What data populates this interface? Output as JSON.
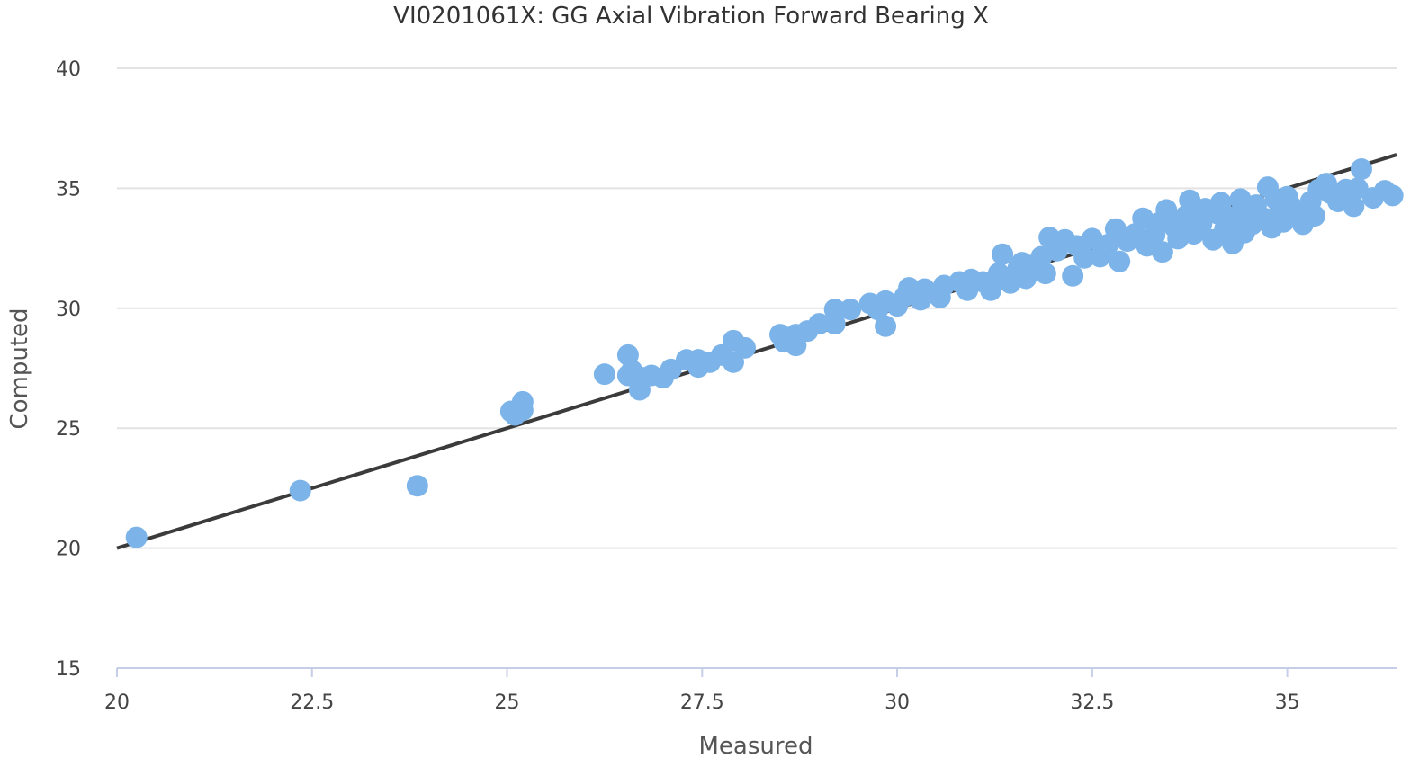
{
  "chart_data": {
    "type": "scatter",
    "title": "VI0201061X: GG Axial Vibration Forward Bearing X",
    "xlabel": "Measured",
    "ylabel": "Computed",
    "xlim": [
      20,
      36.4
    ],
    "ylim": [
      15,
      40
    ],
    "xticks": [
      20,
      22.5,
      25,
      27.5,
      30,
      32.5,
      35
    ],
    "yticks": [
      15,
      20,
      25,
      30,
      35,
      40
    ],
    "grid": true,
    "legend": "none",
    "colors": {
      "points": "#7cb4ea",
      "line": "#3b3b3b"
    },
    "series": [
      {
        "type": "scatter",
        "values": [
          [
            20.25,
            20.45
          ],
          [
            22.35,
            22.4
          ],
          [
            23.85,
            22.6
          ],
          [
            25.05,
            25.7
          ],
          [
            25.1,
            25.55
          ],
          [
            25.2,
            25.75
          ],
          [
            25.2,
            26.1
          ],
          [
            26.25,
            27.25
          ],
          [
            26.55,
            28.05
          ],
          [
            26.55,
            27.2
          ],
          [
            26.6,
            27.4
          ],
          [
            26.7,
            26.6
          ],
          [
            26.75,
            27.1
          ],
          [
            26.85,
            27.2
          ],
          [
            27.0,
            27.1
          ],
          [
            27.1,
            27.45
          ],
          [
            27.3,
            27.85
          ],
          [
            27.45,
            27.55
          ],
          [
            27.45,
            27.85
          ],
          [
            27.6,
            27.75
          ],
          [
            27.75,
            28.05
          ],
          [
            27.9,
            27.75
          ],
          [
            27.9,
            28.65
          ],
          [
            28.05,
            28.35
          ],
          [
            28.5,
            28.9
          ],
          [
            28.55,
            28.6
          ],
          [
            28.7,
            28.45
          ],
          [
            28.7,
            28.9
          ],
          [
            28.85,
            29.05
          ],
          [
            29.0,
            29.35
          ],
          [
            29.2,
            29.35
          ],
          [
            29.2,
            29.95
          ],
          [
            29.4,
            29.95
          ],
          [
            29.65,
            30.2
          ],
          [
            29.75,
            29.95
          ],
          [
            29.85,
            29.25
          ],
          [
            29.85,
            30.3
          ],
          [
            30.0,
            30.1
          ],
          [
            30.1,
            30.5
          ],
          [
            30.15,
            30.85
          ],
          [
            30.3,
            30.35
          ],
          [
            30.35,
            30.8
          ],
          [
            30.55,
            30.45
          ],
          [
            30.6,
            30.95
          ],
          [
            30.8,
            31.1
          ],
          [
            30.9,
            30.75
          ],
          [
            30.95,
            31.2
          ],
          [
            31.1,
            31.1
          ],
          [
            31.2,
            30.75
          ],
          [
            31.3,
            31.45
          ],
          [
            31.35,
            32.25
          ],
          [
            31.45,
            31.05
          ],
          [
            31.55,
            31.65
          ],
          [
            31.6,
            31.9
          ],
          [
            31.65,
            31.25
          ],
          [
            31.75,
            31.8
          ],
          [
            31.85,
            32.15
          ],
          [
            31.9,
            31.45
          ],
          [
            31.95,
            32.95
          ],
          [
            32.05,
            32.4
          ],
          [
            32.15,
            32.85
          ],
          [
            32.25,
            31.35
          ],
          [
            32.3,
            32.6
          ],
          [
            32.4,
            32.1
          ],
          [
            32.5,
            32.9
          ],
          [
            32.6,
            32.15
          ],
          [
            32.7,
            32.65
          ],
          [
            32.8,
            33.3
          ],
          [
            32.85,
            31.95
          ],
          [
            32.95,
            32.8
          ],
          [
            33.05,
            33.1
          ],
          [
            33.15,
            33.75
          ],
          [
            33.2,
            32.6
          ],
          [
            33.3,
            33.05
          ],
          [
            33.35,
            33.55
          ],
          [
            33.4,
            32.35
          ],
          [
            33.45,
            34.1
          ],
          [
            33.55,
            33.4
          ],
          [
            33.6,
            32.9
          ],
          [
            33.7,
            33.85
          ],
          [
            33.75,
            34.5
          ],
          [
            33.8,
            33.1
          ],
          [
            33.9,
            33.5
          ],
          [
            33.95,
            34.15
          ],
          [
            34.05,
            32.85
          ],
          [
            34.1,
            33.95
          ],
          [
            34.15,
            34.4
          ],
          [
            34.2,
            33.3
          ],
          [
            34.3,
            32.7
          ],
          [
            34.35,
            33.85
          ],
          [
            34.4,
            34.55
          ],
          [
            34.45,
            33.15
          ],
          [
            34.5,
            34.0
          ],
          [
            34.55,
            33.5
          ],
          [
            34.6,
            34.3
          ],
          [
            34.7,
            33.75
          ],
          [
            34.75,
            35.05
          ],
          [
            34.8,
            33.35
          ],
          [
            34.85,
            34.55
          ],
          [
            34.9,
            34.0
          ],
          [
            34.95,
            33.6
          ],
          [
            35.0,
            34.65
          ],
          [
            35.05,
            34.25
          ],
          [
            35.15,
            33.95
          ],
          [
            35.2,
            33.5
          ],
          [
            35.3,
            34.45
          ],
          [
            35.35,
            33.85
          ],
          [
            35.4,
            34.95
          ],
          [
            35.5,
            35.2
          ],
          [
            35.55,
            34.8
          ],
          [
            35.65,
            34.45
          ],
          [
            35.75,
            34.95
          ],
          [
            35.85,
            34.25
          ],
          [
            35.9,
            35.0
          ],
          [
            35.95,
            35.8
          ],
          [
            36.1,
            34.6
          ],
          [
            36.25,
            34.9
          ],
          [
            36.35,
            34.7
          ]
        ]
      },
      {
        "type": "line",
        "values": [
          [
            20.0,
            20.0
          ],
          [
            36.4,
            36.4
          ]
        ]
      }
    ]
  }
}
